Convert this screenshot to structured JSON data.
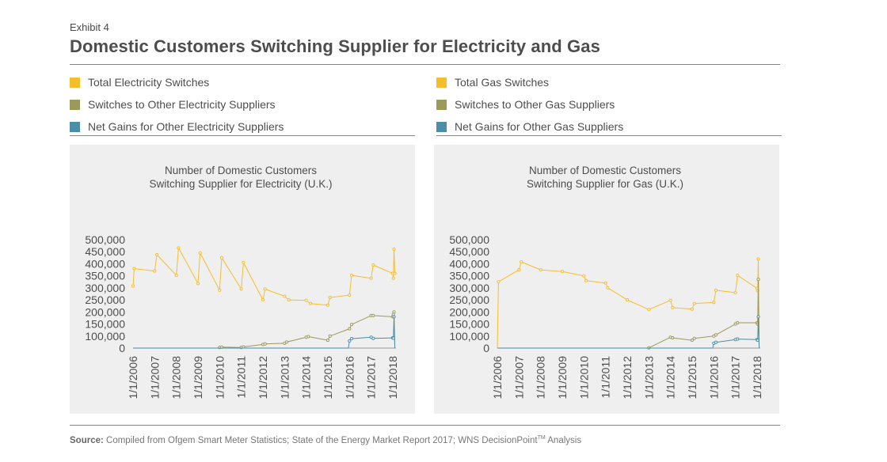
{
  "header": {
    "exhibit": "Exhibit 4",
    "title": "Domestic Customers Switching Supplier for Electricity and Gas"
  },
  "legend_left": [
    {
      "label": "Total Electricity Switches",
      "color": "#F6BE2C"
    },
    {
      "label": "Switches to Other Electricity Suppliers",
      "color": "#9A9A5B"
    },
    {
      "label": "Net Gains for Other Electricity Suppliers",
      "color": "#4A8EA8"
    }
  ],
  "legend_right": [
    {
      "label": "Total Gas Switches",
      "color": "#F6BE2C"
    },
    {
      "label": "Switches to Other Gas Suppliers",
      "color": "#9A9A5B"
    },
    {
      "label": "Net Gains for Other Gas Suppliers",
      "color": "#4A8EA8"
    }
  ],
  "footer": {
    "source_label": "Source:",
    "source_text": "Compiled from Ofgem Smart Meter Statistics; State of the Energy Market Report 2017; WNS DecisionPoint",
    "tm": "TM",
    "source_tail": "Analysis"
  },
  "chart_data": [
    {
      "type": "line",
      "title_lines": [
        "Number of Domestic Customers",
        "Switching Supplier for Electricity (U.K.)"
      ],
      "x_ticks": [
        "1/1/2006",
        "1/1/2007",
        "1/1/2008",
        "1/1/2009",
        "1/1/2010",
        "1/1/2011",
        "1/1/2012",
        "1/1/2013",
        "1/1/2014",
        "1/1/2015",
        "1/1/2016",
        "1/1/2017",
        "1/1/2018"
      ],
      "y_ticks": [
        "0",
        "100,000",
        "150,000",
        "200,000",
        "250,000",
        "300,000",
        "350,000",
        "400,000",
        "450,000",
        "500,000"
      ],
      "ylim": [
        0,
        500000
      ],
      "xlim": [
        2006.0,
        2018.15
      ],
      "series": [
        {
          "name": "Total Electricity Switches",
          "color": "#F6BE2C",
          "x": [
            2006.0,
            2006.05,
            2007.0,
            2007.1,
            2008.0,
            2008.1,
            2009.0,
            2009.1,
            2010.0,
            2010.1,
            2011.0,
            2011.1,
            2012.0,
            2012.1,
            2013.0,
            2013.2,
            2014.0,
            2014.2,
            2015.0,
            2015.1,
            2016.0,
            2016.1,
            2017.0,
            2017.1,
            2018.0,
            2018.03,
            2018.06,
            2018.1
          ],
          "y": [
            308000,
            380000,
            370000,
            438000,
            352000,
            466000,
            318000,
            445000,
            290000,
            425000,
            295000,
            405000,
            250000,
            295000,
            265000,
            250000,
            248000,
            235000,
            228000,
            260000,
            270000,
            352000,
            340000,
            395000,
            360000,
            340000,
            460000,
            360000
          ]
        },
        {
          "name": "Switches to Other Electricity Suppliers",
          "color": "#9A9A5B",
          "x": [
            2006.0,
            2009.9,
            2010.0,
            2010.1,
            2011.0,
            2011.1,
            2012.0,
            2012.1,
            2013.0,
            2013.1,
            2014.0,
            2014.1,
            2015.0,
            2015.1,
            2016.0,
            2016.1,
            2017.0,
            2017.1,
            2018.0,
            2018.03,
            2018.06,
            2018.1
          ],
          "y": [
            0,
            0,
            5000,
            8000,
            5000,
            10000,
            30000,
            35000,
            40000,
            50000,
            90000,
            95000,
            65000,
            100000,
            130000,
            148000,
            185000,
            185000,
            180000,
            190000,
            200000,
            0
          ]
        },
        {
          "name": "Net Gains for Other Electricity Suppliers",
          "color": "#4A8EA8",
          "x": [
            2006.0,
            2015.95,
            2016.0,
            2016.1,
            2017.0,
            2017.1,
            2018.0,
            2018.03,
            2018.06,
            2018.1
          ],
          "y": [
            0,
            0,
            60000,
            78000,
            90000,
            80000,
            85000,
            82000,
            180000,
            0
          ]
        }
      ]
    },
    {
      "type": "line",
      "title_lines": [
        "Number of Domestic Customers",
        "Switching Supplier for Gas (U.K.)"
      ],
      "x_ticks": [
        "1/1/2006",
        "1/1/2007",
        "1/1/2008",
        "1/1/2009",
        "1/1/2010",
        "1/1/2011",
        "1/1/2012",
        "1/1/2013",
        "1/1/2014",
        "1/1/2015",
        "1/1/2016",
        "1/1/2017",
        "1/1/2018"
      ],
      "y_ticks": [
        "0",
        "100,000",
        "150,000",
        "200,000",
        "250,000",
        "300,000",
        "350,000",
        "400,000",
        "450,000",
        "500,000"
      ],
      "ylim": [
        0,
        500000
      ],
      "xlim": [
        2006.0,
        2018.15
      ],
      "series": [
        {
          "name": "Total Gas Switches",
          "color": "#F6BE2C",
          "x": [
            2006.0,
            2006.05,
            2007.0,
            2007.1,
            2008.0,
            2009.0,
            2010.0,
            2010.1,
            2011.0,
            2011.1,
            2012.0,
            2013.0,
            2014.0,
            2014.1,
            2015.0,
            2015.1,
            2016.0,
            2016.1,
            2017.0,
            2017.1,
            2018.0,
            2018.03,
            2018.06,
            2018.1
          ],
          "y": [
            0,
            325000,
            375000,
            408000,
            375000,
            368000,
            350000,
            330000,
            320000,
            300000,
            250000,
            210000,
            248000,
            218000,
            212000,
            235000,
            240000,
            290000,
            280000,
            352000,
            298000,
            288000,
            420000,
            0
          ]
        },
        {
          "name": "Switches to Other Gas Suppliers",
          "color": "#9A9A5B",
          "x": [
            2006.0,
            2012.95,
            2013.0,
            2014.0,
            2014.1,
            2015.0,
            2015.1,
            2016.0,
            2016.1,
            2017.0,
            2017.1,
            2018.0,
            2018.03,
            2018.06,
            2018.1
          ],
          "y": [
            0,
            0,
            2000,
            90000,
            85000,
            65000,
            80000,
            100000,
            105000,
            150000,
            155000,
            155000,
            150000,
            335000,
            0
          ]
        },
        {
          "name": "Net Gains for Other Gas Suppliers",
          "color": "#4A8EA8",
          "x": [
            2006.0,
            2015.95,
            2016.0,
            2016.1,
            2017.0,
            2017.1,
            2018.0,
            2018.03,
            2018.06,
            2018.1
          ],
          "y": [
            0,
            0,
            40000,
            48000,
            70000,
            75000,
            70000,
            65000,
            180000,
            0
          ]
        }
      ]
    }
  ]
}
